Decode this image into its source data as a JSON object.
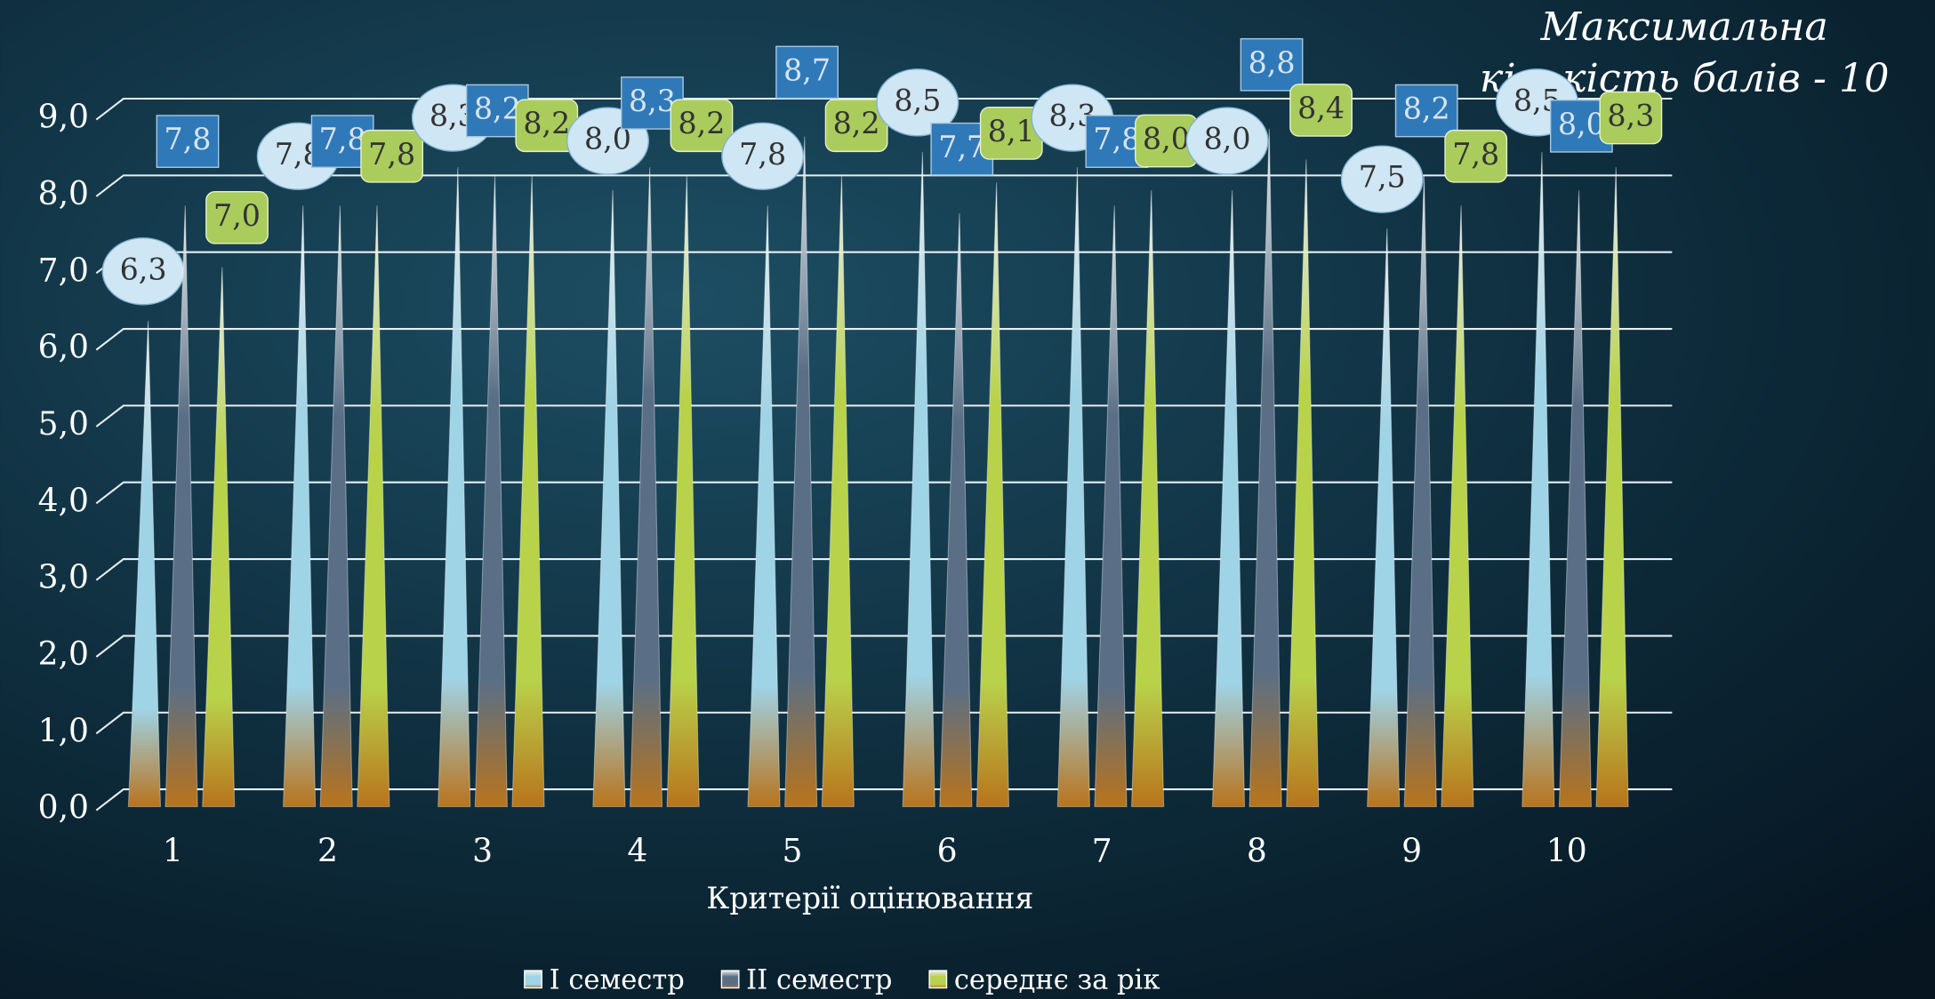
{
  "chart_data": {
    "type": "pyramid",
    "annotation": [
      "Максимальна",
      "кількість балів - 10"
    ],
    "x_label": "Критерії оцінювання",
    "categories": [
      "1",
      "2",
      "3",
      "4",
      "5",
      "6",
      "7",
      "8",
      "9",
      "10"
    ],
    "series": [
      {
        "name": "I семестр",
        "color": "#9fd3e6",
        "values": [
          6.3,
          7.8,
          8.3,
          8.0,
          7.8,
          8.5,
          8.3,
          8.0,
          7.5,
          8.5
        ],
        "value_labels": [
          "6,3",
          "7,8",
          "8,3",
          "8,0",
          "7,8",
          "8,5",
          "8,3",
          "8,0",
          "7,5",
          "8,5"
        ]
      },
      {
        "name": "II семестр",
        "color": "#5a6f86",
        "values": [
          7.8,
          7.8,
          8.2,
          8.3,
          8.7,
          7.7,
          7.8,
          8.8,
          8.2,
          8.0
        ],
        "value_labels": [
          "7,8",
          "7,8",
          "8,2",
          "8,3",
          "8,7",
          "7,7",
          "7,8",
          "8,8",
          "8,2",
          "8,0"
        ]
      },
      {
        "name": "середнє за рік",
        "color": "#b8d24a",
        "values": [
          7.0,
          7.8,
          8.2,
          8.2,
          8.2,
          8.1,
          8.0,
          8.4,
          7.8,
          8.3
        ],
        "value_labels": [
          "7,0",
          "7,8",
          "8,2",
          "8,2",
          "8,2",
          "8,1",
          "8,0",
          "8,4",
          "7,8",
          "8,3"
        ]
      }
    ],
    "ylim": [
      0,
      9
    ],
    "yticks": [
      {
        "value": 0,
        "label": "0,0"
      },
      {
        "value": 1,
        "label": "1,0"
      },
      {
        "value": 2,
        "label": "2,0"
      },
      {
        "value": 3,
        "label": "3,0"
      },
      {
        "value": 4,
        "label": "4,0"
      },
      {
        "value": 5,
        "label": "5,0"
      },
      {
        "value": 6,
        "label": "6,0"
      },
      {
        "value": 7,
        "label": "7,0"
      },
      {
        "value": 8,
        "label": "8,0"
      },
      {
        "value": 9,
        "label": "9,0"
      }
    ],
    "grid": true,
    "legend": "bottom"
  }
}
